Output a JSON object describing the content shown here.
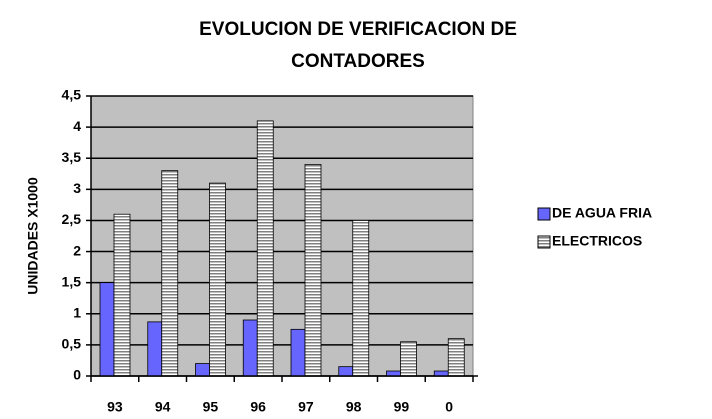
{
  "chart_data": {
    "type": "bar",
    "title": [
      "EVOLUCION DE VERIFICACION DE",
      "CONTADORES"
    ],
    "y_label": "UNIDADES X1000",
    "categories": [
      "93",
      "94",
      "95",
      "96",
      "97",
      "98",
      "99",
      "0"
    ],
    "series": [
      {
        "name": "DE AGUA FRIA",
        "color": "#6666ff",
        "values": [
          1.5,
          0.87,
          0.2,
          0.9,
          0.75,
          0.15,
          0.08,
          0.08
        ]
      },
      {
        "name": "ELECTRICOS",
        "color": "#808080",
        "values": [
          2.6,
          3.3,
          3.1,
          4.1,
          3.4,
          2.5,
          0.55,
          0.6
        ]
      }
    ],
    "ylim": [
      0,
      4.5
    ],
    "yticks": [
      0,
      {
        "value": 0.5,
        "label": "0,5"
      },
      1,
      {
        "value": 1.5,
        "label": "1,5"
      },
      2,
      {
        "value": 2.5,
        "label": "2,5"
      },
      3,
      {
        "value": 3.5,
        "label": "3,5"
      },
      4,
      {
        "value": 4.5,
        "label": "4,5"
      }
    ],
    "grid": true,
    "legend": "right"
  }
}
